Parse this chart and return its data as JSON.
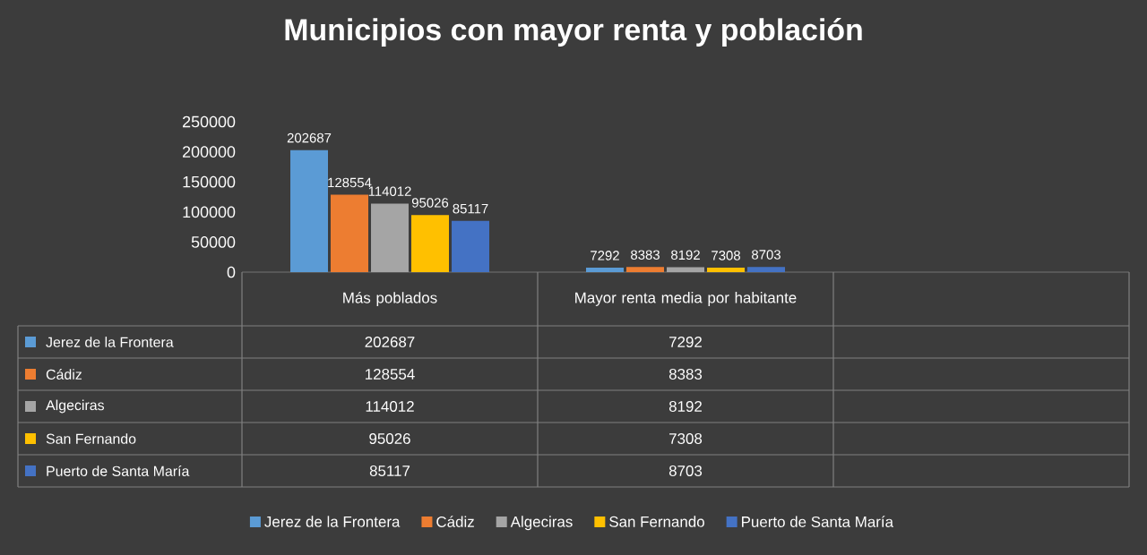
{
  "chart_data": {
    "type": "bar",
    "title": "Municipios con mayor renta y población",
    "categories": [
      "Más poblados",
      "Mayor renta media por habitante",
      null
    ],
    "series": [
      {
        "name": "Jerez de la Frontera",
        "color": "#5b9bd5",
        "values": [
          202687,
          7292,
          null
        ],
        "value_labels": [
          "202687",
          "7292",
          null
        ]
      },
      {
        "name": "Cádiz",
        "color": "#ed7d31",
        "values": [
          128554,
          8383,
          null
        ],
        "value_labels": [
          "128554",
          "8383",
          null
        ]
      },
      {
        "name": "Algeciras",
        "color": "#a5a5a5",
        "values": [
          114012,
          8192,
          null
        ],
        "value_labels": [
          "114012",
          "8192",
          null
        ]
      },
      {
        "name": "San Fernando",
        "color": "#ffc000",
        "values": [
          95026,
          7308,
          null
        ],
        "value_labels": [
          "95026",
          "7308",
          null
        ]
      },
      {
        "name": "Puerto de Santa María",
        "color": "#4472c4",
        "values": [
          85117,
          8703,
          null
        ],
        "value_labels": [
          "85117",
          "8703",
          null
        ]
      }
    ],
    "ylim": [
      0,
      250000
    ],
    "yticks": [
      0,
      50000,
      100000,
      150000,
      200000,
      250000
    ],
    "data_labels": true,
    "legend": "bottom"
  }
}
